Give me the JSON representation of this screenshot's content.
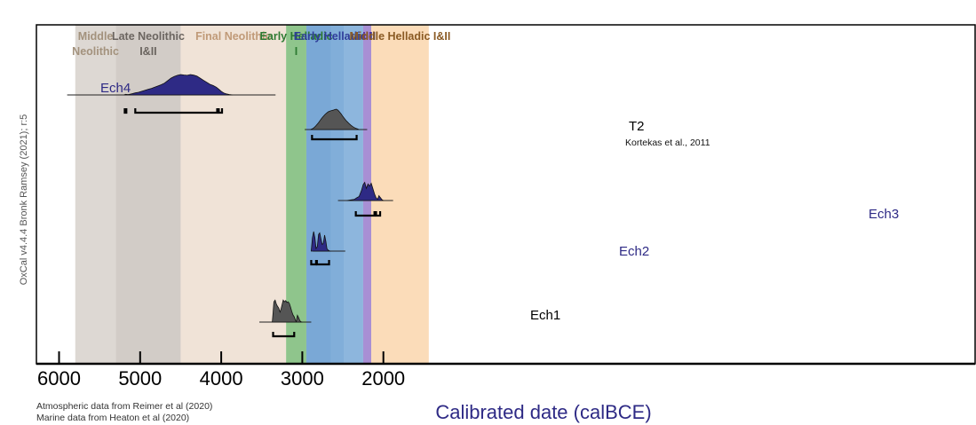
{
  "chart_data": {
    "type": "area",
    "xlabel": "Calibrated date (calBCE)",
    "side_label": "OxCal v4.4.4 Bronk Ramsey (2021); r:5",
    "credits": [
      "Atmospheric data from Reimer et al (2020)",
      "Marine data from Heaton et al (2020)"
    ],
    "xlim": [
      6100,
      1440
    ],
    "x_reversed": true,
    "x_ticks": [
      6000,
      5000,
      4000,
      3000,
      2000
    ],
    "periods": [
      {
        "label": [
          "Middle",
          "Neolithic"
        ],
        "start": 5800,
        "end": 5300,
        "color": "#ddd8d3",
        "label_color": "#a3927d"
      },
      {
        "label": [
          "Late Neolithic",
          "I&II"
        ],
        "start": 5300,
        "end": 4500,
        "color": "#d2ccc7",
        "label_color": "#6b6560"
      },
      {
        "label": [
          "Final Neolithic"
        ],
        "start": 4500,
        "end": 3200,
        "color": "#f0e3d7",
        "label_color": "#c09a78"
      },
      {
        "label": [
          "Early Helladic",
          "I"
        ],
        "start": 3200,
        "end": 2950,
        "color": "#8fc58c",
        "label_color": "#2d7a32"
      },
      {
        "label": [
          "Early Helladic II"
        ],
        "start": 2950,
        "end": 2250,
        "color": "#7aa8d6",
        "label_color": "#2f3d9a"
      },
      {
        "label": [
          "III"
        ],
        "start": 2250,
        "end": 2150,
        "color": "#a88fd4",
        "label_color": "#5a2f98"
      },
      {
        "label": [
          "Middle Helladic I&II"
        ],
        "start": 2150,
        "end": 1440,
        "color": "#fbdcb9",
        "label_color": "#8a5a24"
      }
    ],
    "series": [
      {
        "name": "Ech4",
        "color": "#2e2a85",
        "label_color": "#2e2a85",
        "line": [
          5900,
          3330
        ],
        "pdf": [
          [
            5200,
            0
          ],
          [
            5180,
            0.03
          ],
          [
            5160,
            0.02
          ],
          [
            5140,
            0.02
          ],
          [
            5100,
            0.06
          ],
          [
            5060,
            0.1
          ],
          [
            5020,
            0.13
          ],
          [
            4980,
            0.18
          ],
          [
            4940,
            0.23
          ],
          [
            4900,
            0.28
          ],
          [
            4860,
            0.32
          ],
          [
            4820,
            0.38
          ],
          [
            4780,
            0.44
          ],
          [
            4740,
            0.5
          ],
          [
            4700,
            0.58
          ],
          [
            4660,
            0.7
          ],
          [
            4620,
            0.82
          ],
          [
            4580,
            0.9
          ],
          [
            4540,
            0.96
          ],
          [
            4500,
            1.0
          ],
          [
            4460,
            0.98
          ],
          [
            4420,
            0.96
          ],
          [
            4380,
            1.0
          ],
          [
            4340,
            0.97
          ],
          [
            4300,
            0.92
          ],
          [
            4260,
            0.82
          ],
          [
            4220,
            0.72
          ],
          [
            4180,
            0.62
          ],
          [
            4140,
            0.52
          ],
          [
            4100,
            0.46
          ],
          [
            4060,
            0.38
          ],
          [
            4030,
            0.28
          ],
          [
            4000,
            0.18
          ],
          [
            3970,
            0.1
          ],
          [
            3940,
            0.05
          ],
          [
            3900,
            0.02
          ],
          [
            3860,
            0
          ]
        ],
        "ranges": [
          [
            5190,
            5170
          ],
          [
            5060,
            4050
          ],
          [
            4030,
            3990
          ]
        ]
      },
      {
        "name": "T2",
        "color": "#555555",
        "label_color": "#000000",
        "note": "Kortekas et al., 2011",
        "line": [
          2970,
          2200
        ],
        "pdf": [
          [
            2900,
            0
          ],
          [
            2880,
            0.03
          ],
          [
            2860,
            0.08
          ],
          [
            2840,
            0.15
          ],
          [
            2820,
            0.24
          ],
          [
            2800,
            0.34
          ],
          [
            2780,
            0.45
          ],
          [
            2760,
            0.55
          ],
          [
            2740,
            0.65
          ],
          [
            2720,
            0.74
          ],
          [
            2700,
            0.81
          ],
          [
            2680,
            0.87
          ],
          [
            2660,
            0.9
          ],
          [
            2640,
            0.93
          ],
          [
            2620,
            0.95
          ],
          [
            2600,
            0.98
          ],
          [
            2580,
            1.0
          ],
          [
            2560,
            0.95
          ],
          [
            2540,
            0.86
          ],
          [
            2520,
            0.76
          ],
          [
            2500,
            0.64
          ],
          [
            2480,
            0.54
          ],
          [
            2460,
            0.44
          ],
          [
            2440,
            0.36
          ],
          [
            2420,
            0.28
          ],
          [
            2400,
            0.21
          ],
          [
            2380,
            0.15
          ],
          [
            2360,
            0.1
          ],
          [
            2340,
            0.06
          ],
          [
            2320,
            0.03
          ],
          [
            2300,
            0
          ]
        ],
        "ranges": [
          [
            2880,
            2330
          ]
        ]
      },
      {
        "name": "Ech3",
        "color": "#2e2a85",
        "label_color": "#2e2a85",
        "line": [
          2560,
          1880
        ],
        "pdf": [
          [
            2450,
            0
          ],
          [
            2400,
            0.03
          ],
          [
            2360,
            0.05
          ],
          [
            2330,
            0.12
          ],
          [
            2300,
            0.18
          ],
          [
            2270,
            0.45
          ],
          [
            2250,
            0.72
          ],
          [
            2230,
            0.82
          ],
          [
            2210,
            0.55
          ],
          [
            2190,
            0.75
          ],
          [
            2170,
            0.65
          ],
          [
            2150,
            0.78
          ],
          [
            2130,
            0.55
          ],
          [
            2110,
            0.3
          ],
          [
            2090,
            0.12
          ],
          [
            2070,
            0.06
          ],
          [
            2055,
            0.22
          ],
          [
            2040,
            0.15
          ],
          [
            2020,
            0.05
          ],
          [
            2000,
            0
          ]
        ],
        "ranges": [
          [
            2340,
            2110
          ],
          [
            2090,
            2040
          ]
        ]
      },
      {
        "name": "Ech2",
        "color": "#2e2a85",
        "label_color": "#2e2a85",
        "line": [
          2870,
          2470
        ],
        "pdf": [
          [
            2890,
            0
          ],
          [
            2875,
            0.6
          ],
          [
            2860,
            0.88
          ],
          [
            2845,
            0.6
          ],
          [
            2830,
            0.12
          ],
          [
            2815,
            0.2
          ],
          [
            2800,
            0.75
          ],
          [
            2785,
            0.82
          ],
          [
            2770,
            0.55
          ],
          [
            2755,
            0.3
          ],
          [
            2740,
            0.35
          ],
          [
            2725,
            0.72
          ],
          [
            2710,
            0.45
          ],
          [
            2695,
            0.1
          ],
          [
            2680,
            0.04
          ],
          [
            2660,
            0
          ]
        ],
        "ranges": [
          [
            2890,
            2830
          ],
          [
            2820,
            2670
          ]
        ]
      },
      {
        "name": "Ech1",
        "color": "#555555",
        "label_color": "#000000",
        "line": [
          3530,
          2890
        ],
        "pdf": [
          [
            3370,
            0
          ],
          [
            3360,
            0.4
          ],
          [
            3350,
            0.85
          ],
          [
            3335,
            0.92
          ],
          [
            3320,
            0.75
          ],
          [
            3305,
            0.65
          ],
          [
            3290,
            0.58
          ],
          [
            3275,
            0.42
          ],
          [
            3262,
            0.55
          ],
          [
            3250,
            0.72
          ],
          [
            3235,
            0.92
          ],
          [
            3220,
            0.85
          ],
          [
            3205,
            0.9
          ],
          [
            3190,
            0.82
          ],
          [
            3175,
            0.85
          ],
          [
            3160,
            0.78
          ],
          [
            3145,
            0.62
          ],
          [
            3130,
            0.45
          ],
          [
            3115,
            0.3
          ],
          [
            3100,
            0.22
          ],
          [
            3085,
            0.08
          ],
          [
            3075,
            0.02
          ],
          [
            3060,
            0.28
          ],
          [
            3045,
            0.18
          ],
          [
            3030,
            0.05
          ],
          [
            3010,
            0
          ]
        ],
        "ranges": [
          [
            3360,
            3100
          ]
        ]
      }
    ],
    "colors": {
      "axis": "#000000",
      "frame": "#000000",
      "xlabel": "#2e2a85",
      "side_label": "#555555"
    }
  }
}
